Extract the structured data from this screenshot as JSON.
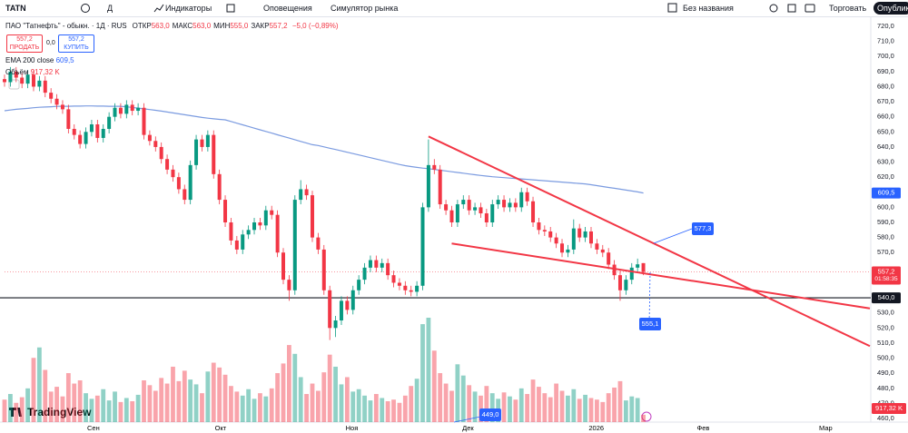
{
  "toolbar": {
    "symbol": "TATN",
    "interval": "Д",
    "indicators": "Индикаторы",
    "alerts": "Оповещения",
    "replay": "Симулятор рынка",
    "layout": "Без названия",
    "trade": "Торговать",
    "publish": "Опубликовать"
  },
  "legend": {
    "title": "ПАО \"Татнефть\" - обыкн. · 1Д · RUS",
    "ohlc": [
      [
        "ОТКР",
        "563,0"
      ],
      [
        "МАКС",
        "563,0"
      ],
      [
        "МИН",
        "555,0"
      ],
      [
        "ЗАКР",
        "557,2"
      ]
    ],
    "change": "−5,0 (−0,89%)",
    "sell_price": "557,2",
    "sell": "ПРОДАТЬ",
    "spread": "0,0",
    "buy_price": "557,2",
    "buy": "КУПИТЬ"
  },
  "logo": "TradingView",
  "chart_data": {
    "type": "candlestick",
    "up_color": "#089981",
    "down_color": "#f23645",
    "xlim": [
      0,
      149
    ],
    "xticks": [
      {
        "value": 15.3,
        "label": "Сен"
      },
      {
        "value": 37.2,
        "label": "Окт"
      },
      {
        "value": 59.8,
        "label": "Ноя"
      },
      {
        "value": 79.8,
        "label": "Дек"
      },
      {
        "value": 101.9,
        "label": "2026"
      },
      {
        "value": 120.3,
        "label": "Фев"
      },
      {
        "value": 141.4,
        "label": "Мар"
      }
    ],
    "ylim": [
      460,
      720
    ],
    "yticks": [
      {
        "value": 720,
        "label": "720,0"
      },
      {
        "value": 710,
        "label": "710,0"
      },
      {
        "value": 700,
        "label": "700,0"
      },
      {
        "value": 690,
        "label": "690,0"
      },
      {
        "value": 680,
        "label": "680,0"
      },
      {
        "value": 670,
        "label": "670,0"
      },
      {
        "value": 660,
        "label": "660,0"
      },
      {
        "value": 650,
        "label": "650,0"
      },
      {
        "value": 640,
        "label": "640,0"
      },
      {
        "value": 630,
        "label": "630,0"
      },
      {
        "value": 620,
        "label": "620,0"
      },
      {
        "value": 600,
        "label": "600,0"
      },
      {
        "value": 590,
        "label": "590,0"
      },
      {
        "value": 580,
        "label": "580,0"
      },
      {
        "value": 570,
        "label": "570,0"
      },
      {
        "value": 530,
        "label": "530,0"
      },
      {
        "value": 520,
        "label": "520,0"
      },
      {
        "value": 510,
        "label": "510,0"
      },
      {
        "value": 500,
        "label": "500,0"
      },
      {
        "value": 490,
        "label": "490,0"
      },
      {
        "value": 480,
        "label": "480,0"
      },
      {
        "value": 470,
        "label": "470,0"
      },
      {
        "value": 460,
        "label": "460,0"
      }
    ],
    "grid": false,
    "open": [
      685,
      683,
      690,
      686,
      682,
      688,
      680,
      684,
      676,
      672,
      668,
      665,
      652,
      648,
      642,
      650,
      655,
      646,
      652,
      660,
      666,
      662,
      668,
      664,
      666,
      648,
      644,
      640,
      632,
      625,
      620,
      612,
      605,
      628,
      645,
      640,
      648,
      622,
      605,
      590,
      578,
      572,
      582,
      585,
      590,
      588,
      598,
      595,
      570,
      552,
      545,
      605,
      612,
      608,
      580,
      572,
      545,
      520,
      525,
      538,
      532,
      545,
      552,
      560,
      565,
      560,
      563,
      555,
      550,
      548,
      545,
      544,
      548,
      600,
      628,
      625,
      602,
      598,
      590,
      602,
      605,
      598,
      600,
      596,
      590,
      602,
      605,
      600,
      603,
      600,
      610,
      604,
      590,
      585,
      584,
      580,
      576,
      570,
      572,
      586,
      580,
      584,
      576,
      572,
      570,
      562,
      555,
      545,
      552,
      560,
      563
    ],
    "high": [
      688,
      693,
      693,
      689,
      691,
      691,
      687,
      687,
      679,
      675,
      671,
      668,
      655,
      651,
      653,
      658,
      658,
      655,
      663,
      669,
      669,
      671,
      671,
      669,
      669,
      651,
      647,
      643,
      635,
      628,
      623,
      615,
      631,
      648,
      648,
      651,
      651,
      625,
      608,
      593,
      581,
      585,
      588,
      593,
      593,
      601,
      601,
      598,
      573,
      555,
      608,
      618,
      615,
      611,
      583,
      575,
      548,
      528,
      541,
      541,
      548,
      555,
      563,
      568,
      568,
      566,
      566,
      558,
      553,
      551,
      548,
      551,
      603,
      645,
      632,
      628,
      605,
      601,
      605,
      608,
      608,
      603,
      603,
      599,
      605,
      608,
      608,
      606,
      606,
      613,
      613,
      607,
      593,
      588,
      587,
      583,
      579,
      575,
      592,
      589,
      587,
      587,
      579,
      575,
      573,
      565,
      558,
      555,
      563,
      566,
      563
    ],
    "low": [
      680,
      680,
      683,
      679,
      679,
      677,
      677,
      673,
      669,
      665,
      662,
      649,
      645,
      639,
      639,
      647,
      643,
      643,
      649,
      657,
      659,
      659,
      661,
      661,
      645,
      641,
      637,
      629,
      622,
      617,
      609,
      602,
      602,
      625,
      637,
      637,
      619,
      602,
      587,
      575,
      569,
      569,
      579,
      582,
      585,
      585,
      592,
      567,
      549,
      538,
      542,
      602,
      605,
      577,
      569,
      542,
      512,
      514,
      522,
      529,
      529,
      542,
      549,
      557,
      557,
      557,
      552,
      547,
      545,
      542,
      541,
      541,
      545,
      597,
      622,
      599,
      595,
      587,
      587,
      599,
      595,
      595,
      593,
      587,
      587,
      599,
      597,
      597,
      597,
      597,
      601,
      587,
      582,
      581,
      577,
      573,
      567,
      567,
      569,
      577,
      577,
      573,
      569,
      567,
      559,
      552,
      538,
      542,
      549,
      557,
      555
    ],
    "close": [
      683,
      690,
      686,
      682,
      688,
      680,
      684,
      676,
      672,
      668,
      665,
      652,
      648,
      642,
      650,
      655,
      646,
      652,
      660,
      666,
      662,
      668,
      664,
      666,
      648,
      644,
      640,
      632,
      625,
      620,
      612,
      605,
      628,
      645,
      640,
      648,
      622,
      605,
      590,
      578,
      572,
      582,
      585,
      590,
      588,
      598,
      595,
      570,
      552,
      545,
      605,
      612,
      608,
      580,
      572,
      545,
      520,
      525,
      538,
      532,
      545,
      552,
      560,
      565,
      560,
      563,
      555,
      550,
      548,
      545,
      544,
      548,
      600,
      628,
      625,
      602,
      598,
      590,
      602,
      605,
      598,
      600,
      596,
      590,
      602,
      605,
      600,
      603,
      600,
      610,
      604,
      590,
      585,
      584,
      580,
      576,
      570,
      572,
      586,
      580,
      584,
      576,
      572,
      570,
      562,
      555,
      545,
      552,
      560,
      562.2,
      557.2
    ],
    "volume": {
      "name": "Объём",
      "value_label": "917,32 K",
      "values": [
        2800,
        3500,
        2400,
        3100,
        4200,
        8000,
        9300,
        6500,
        3800,
        4400,
        3200,
        6100,
        4800,
        5200,
        3600,
        2900,
        3300,
        4100,
        2700,
        3800,
        2500,
        3000,
        2600,
        3400,
        5200,
        4600,
        3900,
        5500,
        4800,
        6900,
        5100,
        6400,
        5300,
        4700,
        3600,
        6300,
        7400,
        6800,
        5900,
        4500,
        3800,
        3300,
        4100,
        2900,
        3600,
        3200,
        4200,
        6100,
        7300,
        9600,
        8500,
        5600,
        3500,
        4800,
        3900,
        6200,
        8400,
        6900,
        4700,
        5600,
        3800,
        4100,
        3300,
        2700,
        3500,
        3000,
        2600,
        2800,
        2400,
        3300,
        4500,
        5400,
        12200,
        13000,
        8900,
        6100,
        4800,
        3900,
        7200,
        5800,
        4600,
        3800,
        3300,
        4500,
        3600,
        2900,
        3700,
        3200,
        2800,
        4200,
        3500,
        5300,
        4400,
        3600,
        3100,
        4800,
        3900,
        3300,
        4100,
        2900,
        3400,
        3000,
        2800,
        2500,
        3600,
        4300,
        5100,
        2700,
        3200,
        3000,
        917.32
      ]
    },
    "ema": {
      "name": "EMA 200 close",
      "color": "#7b9be0",
      "value_label": "609,5",
      "last": 609.5,
      "values": [
        664,
        664.5,
        665,
        665.3,
        665.6,
        666,
        666.3,
        666.5,
        666.7,
        666.9,
        667,
        667,
        667.1,
        667.1,
        667.2,
        667.2,
        667.1,
        667.1,
        667,
        667,
        667,
        666.6,
        666.2,
        665.8,
        665.3,
        664.8,
        664.3,
        663.8,
        663.2,
        662.6,
        662,
        661.4,
        660.8,
        660.2,
        659.6,
        659.1,
        658.7,
        658.3,
        658,
        656.9,
        655.8,
        654.7,
        653.6,
        652.5,
        651.4,
        650.3,
        649.2,
        648.1,
        647,
        645.9,
        644.8,
        643.7,
        642.6,
        641.5,
        641,
        640.1,
        639.2,
        638.3,
        637.4,
        636.5,
        635.6,
        634.7,
        633.8,
        632.9,
        632,
        631.1,
        630.2,
        629.3,
        628.4,
        627.6,
        627,
        626.5,
        626,
        625.6,
        625.1,
        624.6,
        624.1,
        623.6,
        623.1,
        622.6,
        622.1,
        621.6,
        621.1,
        620.7,
        620.3,
        620,
        619.7,
        619.4,
        619.1,
        618.8,
        618.5,
        618.2,
        617.9,
        617.6,
        617.3,
        617,
        616.7,
        616.4,
        616.1,
        615.8,
        615.5,
        615,
        614.4,
        613.8,
        613.2,
        612.6,
        612,
        611.4,
        610.8,
        610.2,
        609.5
      ]
    },
    "last_price": {
      "value": 557.2,
      "label": "557,2",
      "countdown": "01:58:35"
    },
    "hline": {
      "value": 540,
      "label": "540,0",
      "color": "#131722"
    },
    "trendlines": [
      {
        "x": [
          73,
          149
        ],
        "y": [
          647,
          508
        ],
        "color": "#f23645"
      },
      {
        "x": [
          77,
          149
        ],
        "y": [
          576,
          533
        ],
        "color": "#f23645"
      }
    ],
    "bubbles": [
      "577,3",
      "555,1",
      "449,0"
    ]
  }
}
